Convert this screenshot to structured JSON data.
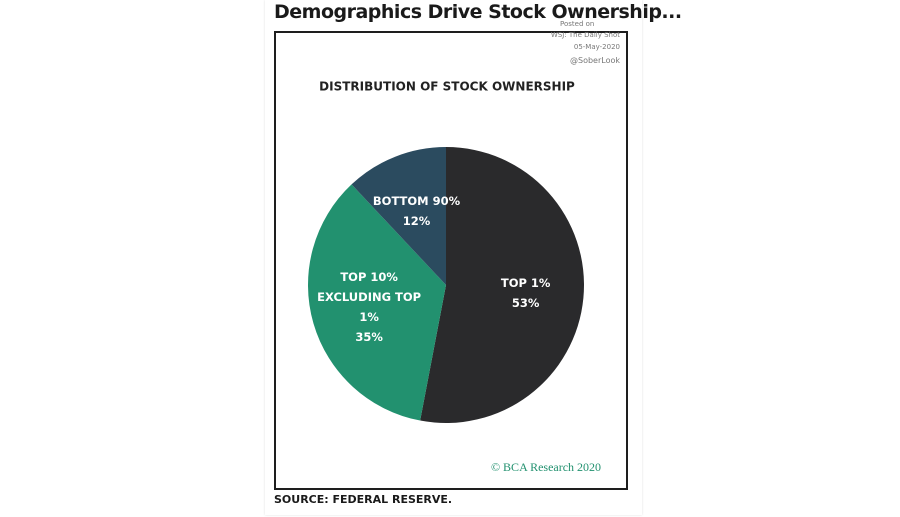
{
  "header": {
    "headline": "Demographics Drive Stock Ownership...",
    "posted": [
      "Posted on",
      "WSJ: The Daily Shot",
      "05-May-2020"
    ],
    "handle": "@SoberLook",
    "source": "SOURCE: FEDERAL RESERVE."
  },
  "chart_data": {
    "type": "pie",
    "title": "DISTRIBUTION OF STOCK OWNERSHIP",
    "categories": [
      "TOP 1%",
      "TOP 10% EXCLUDING TOP 1%",
      "BOTTOM 90%"
    ],
    "values": [
      53,
      35,
      12
    ],
    "value_labels": [
      "53%",
      "35%",
      "12%"
    ],
    "colors": [
      "#2a2a2c",
      "#22916f",
      "#2b4b5f"
    ],
    "credit": "© BCA Research 2020"
  }
}
